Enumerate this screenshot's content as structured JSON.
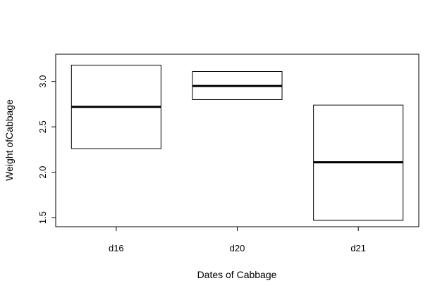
{
  "chart_data": {
    "type": "boxplot",
    "title": "",
    "xlabel": "Dates of Cabbage",
    "ylabel": "Weight ofCabbage",
    "ylim": [
      1.4,
      3.3
    ],
    "yticks": [
      "1.5",
      "2.0",
      "2.5",
      "3.0"
    ],
    "categories": [
      "d16",
      "d20",
      "d21"
    ],
    "boxes": [
      {
        "category": "d16",
        "q1": 2.26,
        "median": 2.72,
        "q3": 3.18
      },
      {
        "category": "d20",
        "q1": 2.8,
        "median": 2.95,
        "q3": 3.11
      },
      {
        "category": "d21",
        "q1": 1.47,
        "median": 2.11,
        "q3": 2.74
      }
    ],
    "grid": false,
    "legend": "none",
    "colors": {
      "box_fill": "#ffffff",
      "box_stroke": "#000000",
      "median": "#000000"
    }
  }
}
